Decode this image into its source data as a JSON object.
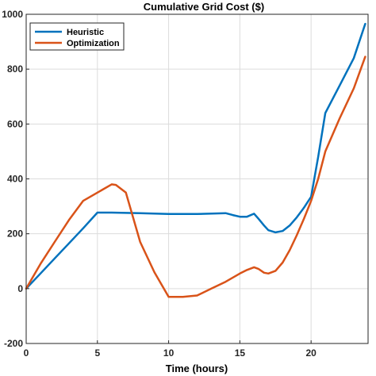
{
  "chart_data": {
    "type": "line",
    "title": "Cumulative Grid Cost ($)",
    "xlabel": "Time (hours)",
    "ylabel": "",
    "xlim": [
      0,
      24
    ],
    "ylim": [
      -200,
      1000
    ],
    "xticks": [
      0,
      5,
      10,
      15,
      20
    ],
    "yticks": [
      -200,
      0,
      200,
      400,
      600,
      800,
      1000
    ],
    "grid": true,
    "legend_position": "top-left",
    "series": [
      {
        "name": "Heuristic",
        "color": "#0072BD",
        "x": [
          0,
          1,
          2,
          3,
          4,
          5,
          6,
          8,
          10,
          12,
          14,
          14.5,
          15,
          15.5,
          16,
          16.3,
          16.7,
          17,
          17.5,
          18,
          18.5,
          19,
          19.5,
          20,
          20.5,
          21,
          22,
          23,
          23.8
        ],
        "y": [
          0,
          55,
          110,
          165,
          220,
          277,
          277,
          275,
          272,
          272,
          275,
          268,
          262,
          262,
          273,
          255,
          230,
          213,
          205,
          210,
          230,
          260,
          295,
          335,
          480,
          640,
          740,
          840,
          965
        ]
      },
      {
        "name": "Optimization",
        "color": "#D95319",
        "x": [
          0,
          1,
          2,
          3,
          4,
          5,
          6,
          6.3,
          7,
          8,
          9,
          10,
          11,
          12,
          13,
          14,
          15,
          15.5,
          16,
          16.3,
          16.7,
          17,
          17.5,
          18,
          18.5,
          19,
          19.5,
          20,
          20.5,
          21,
          22,
          23,
          23.8
        ],
        "y": [
          0,
          90,
          170,
          250,
          320,
          350,
          380,
          378,
          350,
          170,
          60,
          -30,
          -30,
          -25,
          0,
          25,
          55,
          68,
          78,
          72,
          58,
          55,
          65,
          95,
          140,
          195,
          255,
          320,
          400,
          500,
          620,
          730,
          845
        ]
      }
    ]
  }
}
